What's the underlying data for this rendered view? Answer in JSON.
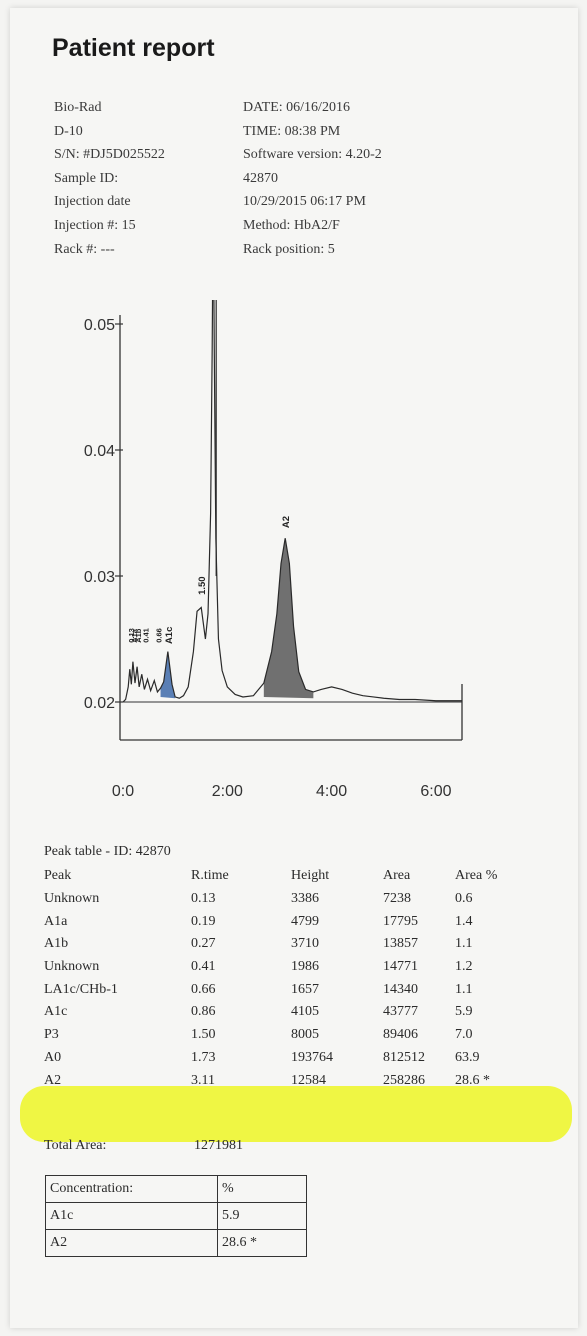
{
  "title": "Patient report",
  "meta_left": [
    "Bio-Rad",
    "D-10",
    "S/N: #DJ5D025522",
    "Sample ID:",
    "Injection date",
    "Injection #: 15",
    "Rack #: ---"
  ],
  "meta_right": [
    "DATE: 06/16/2016",
    "TIME:  08:38 PM",
    "Software version: 4.20-2",
    "42870",
    "10/29/2015 06:17 PM",
    "Method: HbA2/F",
    "Rack position: 5"
  ],
  "chart_data": {
    "type": "line",
    "x_ticks": [
      "0:0",
      "2:00",
      "4:00",
      "6:00"
    ],
    "y_ticks": [
      "0.02",
      "0.03",
      "0.04",
      "0.05"
    ],
    "xlim": [
      0,
      6.5
    ],
    "ylim": [
      0.016,
      0.0505
    ],
    "peak_labels": [
      {
        "label": "0.13",
        "x": 0.13
      },
      {
        "label": "A1a",
        "x": 0.19
      },
      {
        "label": "A1b",
        "x": 0.27
      },
      {
        "label": "0.41",
        "x": 0.41
      },
      {
        "label": "0.66",
        "x": 0.66
      },
      {
        "label": "A1c",
        "x": 0.86
      },
      {
        "label": "1.50",
        "x": 1.5
      },
      {
        "label": "A2",
        "x": 3.11
      }
    ],
    "shaded_peaks": [
      {
        "name": "A1c",
        "color": "#5a7fb5"
      },
      {
        "name": "A2",
        "color": "#707070"
      }
    ],
    "x": [
      0,
      0.05,
      0.1,
      0.13,
      0.16,
      0.19,
      0.23,
      0.27,
      0.31,
      0.36,
      0.41,
      0.47,
      0.53,
      0.6,
      0.66,
      0.72,
      0.78,
      0.86,
      0.94,
      1.0,
      1.08,
      1.16,
      1.25,
      1.35,
      1.42,
      1.5,
      1.58,
      1.63,
      1.68,
      1.71,
      1.73,
      1.75,
      1.78,
      1.83,
      1.9,
      2.0,
      2.15,
      2.3,
      2.5,
      2.7,
      2.85,
      2.95,
      3.03,
      3.11,
      3.19,
      3.27,
      3.37,
      3.5,
      3.65,
      3.8,
      4.0,
      4.2,
      4.4,
      4.6,
      4.8,
      5.0,
      5.3,
      5.6,
      6.0,
      6.5
    ],
    "y": [
      0.02,
      0.0202,
      0.0212,
      0.0226,
      0.0214,
      0.0232,
      0.0215,
      0.0228,
      0.0212,
      0.0222,
      0.021,
      0.0218,
      0.0209,
      0.0217,
      0.0208,
      0.0211,
      0.0216,
      0.024,
      0.0214,
      0.0204,
      0.0203,
      0.0205,
      0.0212,
      0.024,
      0.0272,
      0.0275,
      0.025,
      0.027,
      0.035,
      0.048,
      0.06,
      0.048,
      0.033,
      0.025,
      0.0225,
      0.0212,
      0.0206,
      0.0204,
      0.0205,
      0.0215,
      0.024,
      0.027,
      0.031,
      0.033,
      0.031,
      0.026,
      0.0224,
      0.021,
      0.0208,
      0.021,
      0.0212,
      0.021,
      0.0207,
      0.0205,
      0.0204,
      0.0203,
      0.0202,
      0.0202,
      0.0201,
      0.0201
    ]
  },
  "peak_table": {
    "title": "Peak table  -  ID: 42870",
    "columns": [
      "Peak",
      "R.time",
      "Height",
      "Area",
      "Area %"
    ],
    "rows": [
      [
        "Unknown",
        "0.13",
        "3386",
        "7238",
        "0.6"
      ],
      [
        "A1a",
        "0.19",
        "4799",
        "17795",
        "1.4"
      ],
      [
        "A1b",
        "0.27",
        "3710",
        "13857",
        "1.1"
      ],
      [
        "Unknown",
        "0.41",
        "1986",
        "14771",
        "1.2"
      ],
      [
        "LA1c/CHb-1",
        "0.66",
        "1657",
        "14340",
        "1.1"
      ],
      [
        "A1c",
        "0.86",
        "4105",
        "43777",
        "5.9"
      ],
      [
        "P3",
        "1.50",
        "8005",
        "89406",
        "7.0"
      ],
      [
        "A0",
        "1.73",
        "193764",
        "812512",
        "63.9"
      ],
      [
        "A2",
        "3.11",
        "12584",
        "258286",
        "28.6 *"
      ]
    ],
    "highlighted_peaks": [
      "A0",
      "A2"
    ],
    "highlight_color": "#eef53a"
  },
  "total_area": {
    "label": "Total Area:",
    "value": "1271981"
  },
  "concentration": {
    "header": [
      "Concentration:",
      "%"
    ],
    "rows": [
      [
        "A1c",
        "5.9"
      ],
      [
        "A2",
        "28.6 *"
      ]
    ]
  }
}
